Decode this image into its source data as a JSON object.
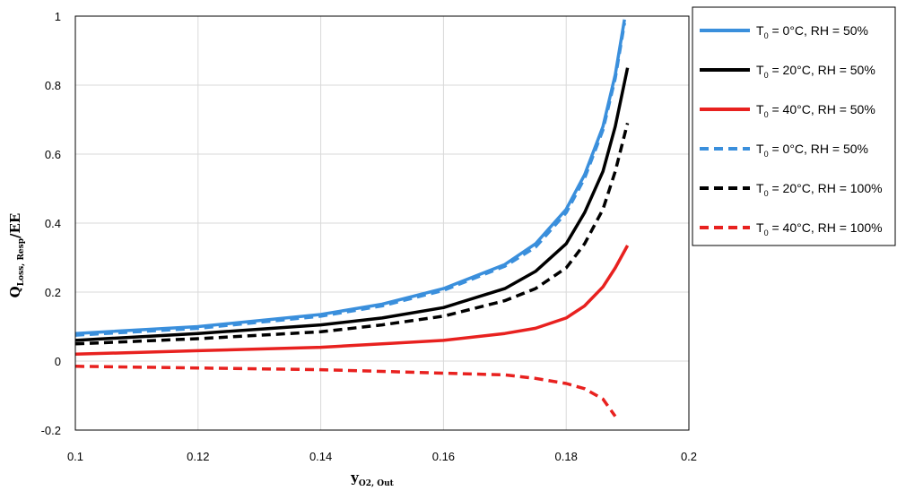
{
  "chart_data": {
    "type": "line",
    "title": "",
    "xlabel": {
      "main": "y",
      "sub": "O2, Out"
    },
    "ylabel": {
      "main": "Q",
      "sub": "Loss, Resp",
      "suffix": "/EE"
    },
    "xlim": [
      0.1,
      0.2
    ],
    "ylim": [
      -0.2,
      1
    ],
    "x_ticks": [
      "0.1",
      "0.12",
      "0.14",
      "0.16",
      "0.18",
      "0.2"
    ],
    "y_ticks": [
      "-0.2",
      "0",
      "0.2",
      "0.4",
      "0.6",
      "0.8",
      "1"
    ],
    "grid": true,
    "legend_position": "right",
    "series": [
      {
        "name": {
          "pre": "T",
          "sub": "0",
          "post": " = 0°C, RH = 50%"
        },
        "color": "#3a8fdc",
        "dash": "solid",
        "x": [
          0.1,
          0.12,
          0.14,
          0.15,
          0.16,
          0.17,
          0.175,
          0.18,
          0.183,
          0.186,
          0.188,
          0.1895
        ],
        "y": [
          0.08,
          0.1,
          0.135,
          0.165,
          0.21,
          0.28,
          0.34,
          0.44,
          0.54,
          0.68,
          0.83,
          0.99
        ]
      },
      {
        "name": {
          "pre": "T",
          "sub": "0",
          "post": " = 20°C, RH = 50%"
        },
        "color": "#000000",
        "dash": "solid",
        "x": [
          0.1,
          0.12,
          0.14,
          0.15,
          0.16,
          0.17,
          0.175,
          0.18,
          0.183,
          0.186,
          0.188,
          0.19
        ],
        "y": [
          0.06,
          0.08,
          0.105,
          0.125,
          0.155,
          0.21,
          0.26,
          0.34,
          0.43,
          0.55,
          0.68,
          0.85
        ]
      },
      {
        "name": {
          "pre": "T",
          "sub": "0",
          "post": " = 40°C, RH = 50%"
        },
        "color": "#e8211f",
        "dash": "solid",
        "x": [
          0.1,
          0.12,
          0.14,
          0.15,
          0.16,
          0.17,
          0.175,
          0.18,
          0.183,
          0.186,
          0.188,
          0.19
        ],
        "y": [
          0.02,
          0.03,
          0.04,
          0.05,
          0.06,
          0.08,
          0.095,
          0.125,
          0.16,
          0.215,
          0.27,
          0.335
        ]
      },
      {
        "name": {
          "pre": "T",
          "sub": "0",
          "post": " = 0°C, RH = 50%"
        },
        "color": "#3a8fdc",
        "dash": "dashed",
        "x": [
          0.1,
          0.12,
          0.14,
          0.15,
          0.16,
          0.17,
          0.175,
          0.18,
          0.183,
          0.186,
          0.188,
          0.1895
        ],
        "y": [
          0.075,
          0.095,
          0.13,
          0.16,
          0.205,
          0.275,
          0.33,
          0.43,
          0.53,
          0.67,
          0.82,
          0.98
        ]
      },
      {
        "name": {
          "pre": "T",
          "sub": "0",
          "post": " = 20°C, RH = 100%"
        },
        "color": "#000000",
        "dash": "dashed",
        "x": [
          0.1,
          0.12,
          0.14,
          0.15,
          0.16,
          0.17,
          0.175,
          0.18,
          0.183,
          0.186,
          0.188,
          0.19
        ],
        "y": [
          0.05,
          0.065,
          0.085,
          0.105,
          0.13,
          0.175,
          0.21,
          0.27,
          0.34,
          0.44,
          0.55,
          0.69
        ]
      },
      {
        "name": {
          "pre": "T",
          "sub": "0",
          "post": " = 40°C, RH = 100%"
        },
        "color": "#e8211f",
        "dash": "dashed",
        "x": [
          0.1,
          0.12,
          0.14,
          0.15,
          0.16,
          0.17,
          0.175,
          0.18,
          0.183,
          0.186,
          0.188
        ],
        "y": [
          -0.015,
          -0.02,
          -0.025,
          -0.03,
          -0.035,
          -0.04,
          -0.05,
          -0.065,
          -0.08,
          -0.11,
          -0.16
        ]
      }
    ]
  }
}
